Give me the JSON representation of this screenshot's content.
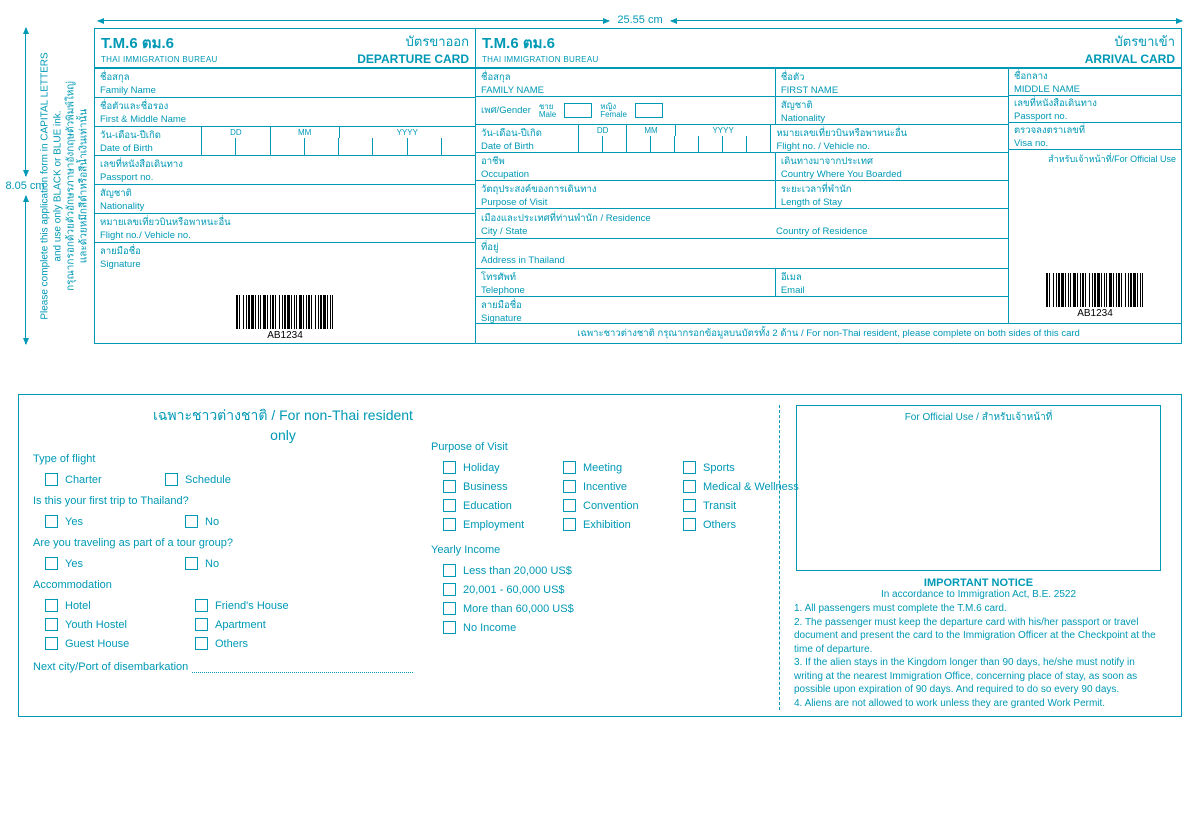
{
  "dims": {
    "w": "25.55 cm",
    "h": "8.05 cm"
  },
  "side_note": {
    "en": "Please complete this application form in CAPITAL LETTERS\nand use only BLACK or BLUE ink.",
    "th": "กรุณากรอกด้วยตัวอักษรภาษาอังกฤษตัวพิมพ์ใหญ่\nและด้วยหมึกสีดำหรือสีน้ำเงินเท่านั้น"
  },
  "barcode_no": "AB1234",
  "dep": {
    "code": "T.M.6 ตม.6",
    "bureau": "THAI IMMIGRATION BUREAU",
    "title_th": "บัตรขาออก",
    "title_en": "DEPARTURE CARD",
    "fields": [
      {
        "th": "ชื่อสกุล",
        "en": "Family Name"
      },
      {
        "th": "ชื่อตัวและชื่อรอง",
        "en": "First & Middle Name"
      },
      {
        "th": "เลขที่หนังสือเดินทาง",
        "en": "Passport no."
      },
      {
        "th": "สัญชาติ",
        "en": "Nationality"
      },
      {
        "th": "หมายเลขเที่ยวบินหรือพาหนะอื่น",
        "en": "Flight no./ Vehicle no."
      },
      {
        "th": "ลายมือชื่อ",
        "en": "Signature"
      }
    ],
    "dob": {
      "th": "วัน-เดือน-ปีเกิด",
      "en": "Date of Birth",
      "dd": "DD",
      "mm": "MM",
      "yy": "YYYY"
    }
  },
  "arr": {
    "code": "T.M.6 ตม.6",
    "bureau": "THAI IMMIGRATION BUREAU",
    "title_th": "บัตรขาเข้า",
    "title_en": "ARRIVAL CARD",
    "family": {
      "th": "ชื่อสกุล",
      "en": "FAMILY NAME"
    },
    "first": {
      "th": "ชื่อตัว",
      "en": "FIRST NAME"
    },
    "middle": {
      "th": "ชื่อกลาง",
      "en": "MIDDLE NAME"
    },
    "gender": {
      "th": "เพศ/",
      "en": "Gender",
      "m_th": "ชาย",
      "m_en": "Male",
      "f_th": "หญิง",
      "f_en": "Female"
    },
    "nat": {
      "th": "สัญชาติ",
      "en": "Nationality"
    },
    "pass": {
      "th": "เลขที่หนังสือเดินทาง",
      "en": "Passport no."
    },
    "dob": {
      "th": "วัน-เดือน-ปีเกิด",
      "en": "Date of Birth",
      "dd": "DD",
      "mm": "MM",
      "yy": "YYYY"
    },
    "flight": {
      "th": "หมายเลขเที่ยวบินหรือพาหนะอื่น",
      "en": "Flight no. / Vehicle no."
    },
    "visa": {
      "th": "ตรวจลงตราเลขที่",
      "en": "Visa no."
    },
    "occ": {
      "th": "อาชีพ",
      "en": "Occupation"
    },
    "boarded": {
      "th": "เดินทางมาจากประเทศ",
      "en": "Country Where You Boarded"
    },
    "purpose": {
      "th": "วัตถุประสงค์ของการเดินทาง",
      "en": "Purpose of Visit"
    },
    "stay": {
      "th": "ระยะเวลาที่พำนัก",
      "en": "Length of Stay"
    },
    "residence": {
      "th": "เมืองและประเทศที่ท่านพำนัก / Residence",
      "city": "City / State",
      "country": "Country of Residence"
    },
    "addr": {
      "th": "ที่อยู่",
      "en": "Address in Thailand"
    },
    "tel": {
      "th": "โทรศัพท์",
      "en": "Telephone"
    },
    "email": {
      "th": "อีเมล",
      "en": "Email"
    },
    "sig": {
      "th": "ลายมือชื่อ",
      "en": "Signature"
    },
    "official": "สำหรับเจ้าหน้าที่/For Official Use",
    "footer": "เฉพาะชาวต่างชาติ กรุณากรอกข้อมูลบนบัตรทั้ง 2 ด้าน   /   For non-Thai resident, please complete on both sides of this card"
  },
  "back": {
    "title": "เฉพาะชาวต่างชาติ / For non-Thai resident  only",
    "type_of_flight": "Type of flight",
    "flight_opts": [
      "Charter",
      "Schedule"
    ],
    "first_trip": "Is this your first trip to Thailand?",
    "yn": [
      "Yes",
      "No"
    ],
    "tour": "Are you traveling as part of a tour group?",
    "accom": "Accommodation",
    "accom_opts": [
      "Hotel",
      "Friend's House",
      "Youth Hostel",
      "Apartment",
      "Guest House",
      "Others"
    ],
    "disemb": "Next city/Port of disembarkation",
    "purpose": "Purpose of Visit",
    "purpose_opts": [
      "Holiday",
      "Meeting",
      "Sports",
      "Business",
      "Incentive",
      "Medical & Wellness",
      "Education",
      "Convention",
      "Transit",
      "Employment",
      "Exhibition",
      "Others"
    ],
    "income": "Yearly Income",
    "income_opts": [
      "Less than 20,000 US$",
      "20,001 - 60,000 US$",
      "More than 60,000 US$",
      "No Income"
    ],
    "official": "For Official Use / สำหรับเจ้าหน้าที่",
    "notice_title": "IMPORTANT NOTICE",
    "notice_sub": "In accordance to Immigration Act, B.E. 2522",
    "notice": [
      "1. All passengers must complete the T.M.6 card.",
      "2. The passenger must keep the departure card with his/her passport or travel document and present the card to the Immigration Officer at the Checkpoint at the time of departure.",
      "3. If the alien stays in the Kingdom longer than 90 days, he/she must notify in writing at the nearest Immigration Office, concerning place of stay, as soon as possible upon expiration of 90 days. And required to do so every 90 days.",
      "4. Aliens are not allowed to work unless they are granted Work Permit."
    ]
  }
}
